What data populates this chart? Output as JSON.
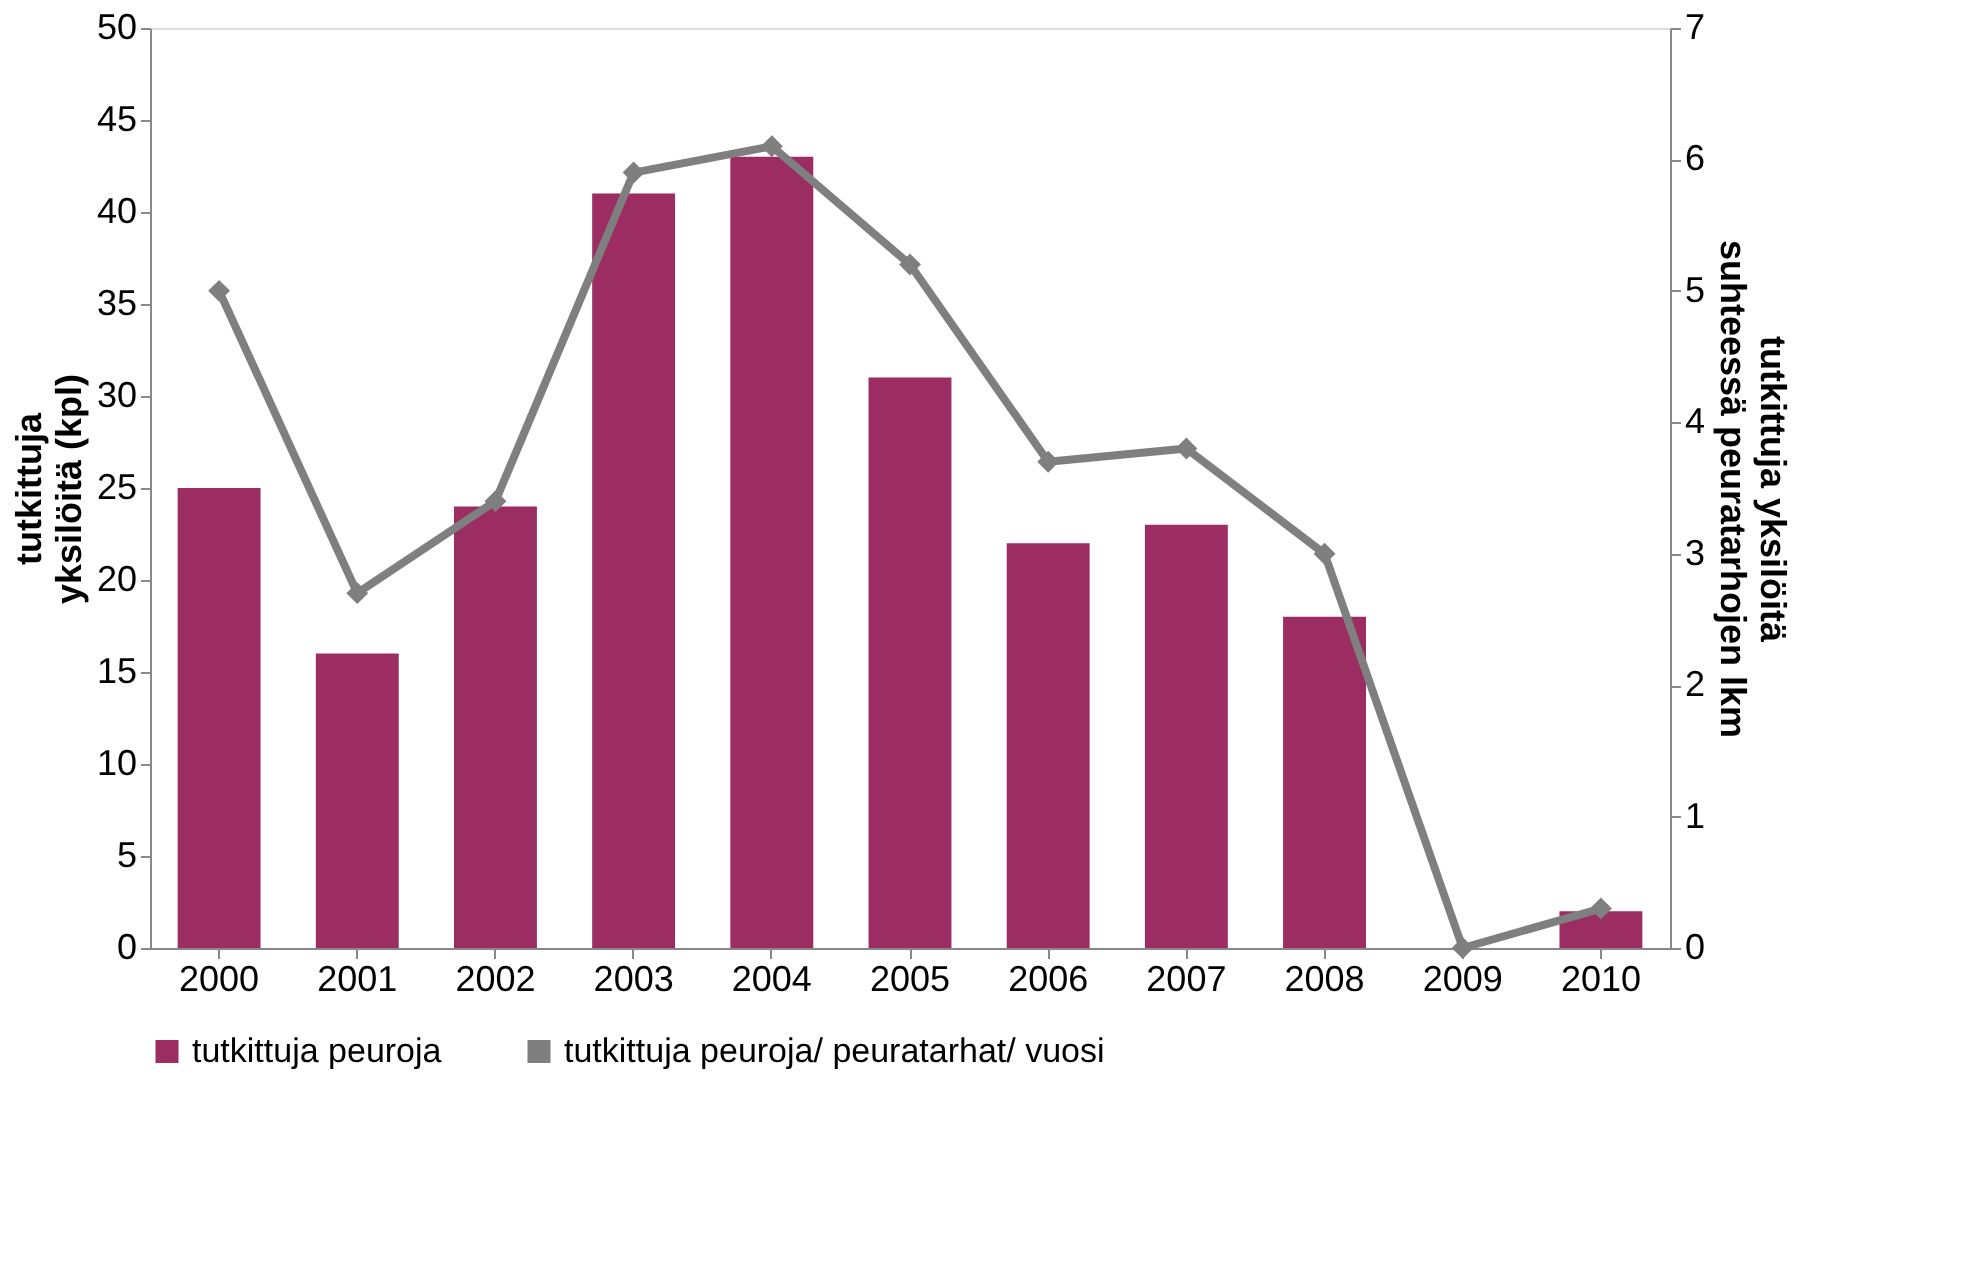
{
  "chart_data": {
    "type": "bar",
    "categories": [
      "2000",
      "2001",
      "2002",
      "2003",
      "2004",
      "2005",
      "2006",
      "2007",
      "2008",
      "2009",
      "2010"
    ],
    "ylabel": "tutkittuja yksilöitä (kpl)",
    "y2label": "tutkittuja yksilöitä suhteessä peuratarhojen lkm",
    "ylim": [
      0,
      50
    ],
    "yticks": [
      0,
      5,
      10,
      15,
      20,
      25,
      30,
      35,
      40,
      45,
      50
    ],
    "y2lim": [
      0,
      7
    ],
    "y2ticks": [
      0,
      1,
      2,
      3,
      4,
      5,
      6,
      7
    ],
    "grid": false,
    "legend": "bottom",
    "series": [
      {
        "name": "tutkittuja peuroja",
        "color": "#9b2d62",
        "values": [
          25,
          16,
          24,
          41,
          43,
          31,
          22,
          23,
          18,
          0,
          2
        ]
      },
      {
        "name": "tutkittuja peuroja/ peuratarhat/ vuosi",
        "type": "line",
        "axis": "y2",
        "marker": "diamond",
        "line_style": "solid",
        "color": "#7f7f7f",
        "values": [
          5.0,
          2.7,
          3.4,
          5.9,
          6.1,
          5.2,
          3.7,
          3.8,
          3.0,
          0,
          0.3
        ]
      }
    ]
  }
}
